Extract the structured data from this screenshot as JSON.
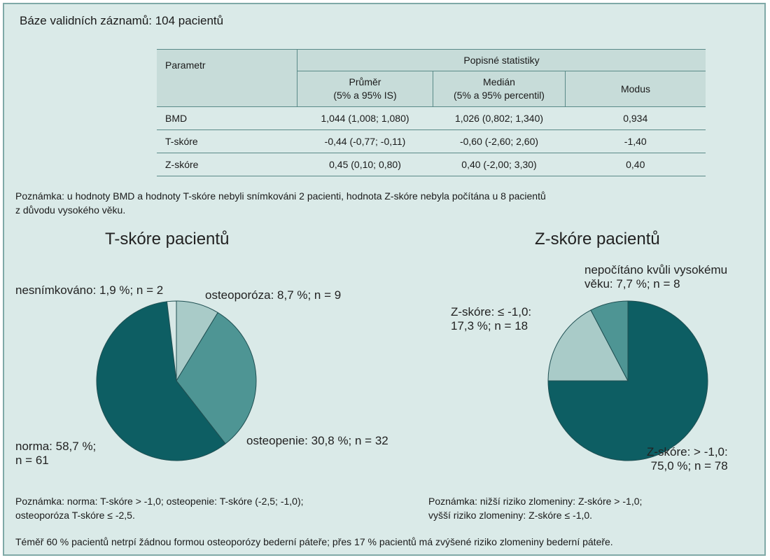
{
  "base_text": "Báze validních záznamů: 104 pacientů",
  "table": {
    "param_header": "Parametr",
    "group_header": "Popisné statistiky",
    "col_headers": [
      [
        "Průměr",
        "(5% a 95% IS)"
      ],
      [
        "Medián",
        "(5% a 95% percentil)"
      ],
      [
        "Modus"
      ]
    ],
    "rows": [
      {
        "param": "BMD",
        "mean": "1,044 (1,008; 1,080)",
        "median": "1,026 (0,802; 1,340)",
        "mode": "0,934"
      },
      {
        "param": "T-skóre",
        "mean": "-0,44 (-0,77; -0,11)",
        "median": "-0,60 (-2,60; 2,60)",
        "mode": "-1,40"
      },
      {
        "param": "Z-skóre",
        "mean": "0,45 (0,10; 0,80)",
        "median": "0,40 (-2,00; 3,30)",
        "mode": "0,40"
      }
    ]
  },
  "note_top": [
    "Poznámka: u hodnoty BMD a hodnoty T-skóre nebyli snímkováni 2 pacienti, hodnota Z-skóre nebyla počítána u 8 pacientů",
    "z důvodu vysokého věku."
  ],
  "chart_data": [
    {
      "type": "pie",
      "title": "T-skóre pacientů",
      "slices": [
        {
          "label": "osteoporóza: 8,7 %; n = 9",
          "value": 8.7,
          "n": 9,
          "color": "#a9cbc8"
        },
        {
          "label": "osteopenie: 30,8 %; n = 32",
          "value": 30.8,
          "n": 32,
          "color": "#4e9594"
        },
        {
          "label": "norma: 58,7 %; n = 61",
          "value": 58.7,
          "n": 61,
          "color": "#0d5e63"
        },
        {
          "label": "nesnímkováno: 1,9 %; n = 2",
          "value": 1.9,
          "n": 2,
          "color": "#d7e8e6"
        }
      ],
      "label_lines": {
        "osteoporosis": [
          "osteoporóza: 8,7 %; n = 9"
        ],
        "osteopenia": [
          "osteopenie: 30,8 %; n = 32"
        ],
        "normal": [
          "norma: 58,7 %;",
          "n = 61"
        ],
        "not_scanned": [
          "nesnímkováno: 1,9 %; n = 2"
        ]
      }
    },
    {
      "type": "pie",
      "title": "Z-skóre pacientů",
      "slices": [
        {
          "label": "Z-skóre: > -1,0: 75,0 %; n = 78",
          "value": 75.0,
          "n": 78,
          "color": "#0d5e63"
        },
        {
          "label": "Z-skóre: ≤ -1,0: 17,3 %; n = 18",
          "value": 17.3,
          "n": 18,
          "color": "#a9cbc8"
        },
        {
          "label": "nepočítáno kvůli vysokému věku: 7,7 %; n = 8",
          "value": 7.7,
          "n": 8,
          "color": "#4e9594"
        }
      ],
      "label_lines": {
        "above": [
          "Z-skóre: > -1,0:",
          "75,0 %; n = 78"
        ],
        "below": [
          "Z-skóre: ≤ -1,0:",
          "17,3 %; n = 18"
        ],
        "not_computed": [
          "nepočítáno kvůli vysokému",
          "věku: 7,7 %; n = 8"
        ]
      }
    }
  ],
  "note_left": [
    "Poznámka: norma: T-skóre > -1,0; osteopenie: T-skóre (-2,5; -1,0);",
    "osteoporóza T-skóre ≤ -2,5."
  ],
  "note_right": [
    "Poznámka: nižší riziko zlomeniny: Z-skóre > -1,0;",
    "vyšší riziko zlomeniny: Z-skóre ≤ -1,0."
  ],
  "footer": "Téměř 60 % pacientů netrpí žádnou formou osteoporózy bederní páteře; přes 17 % pacientů má zvýšené riziko zlomeniny bederní páteře."
}
